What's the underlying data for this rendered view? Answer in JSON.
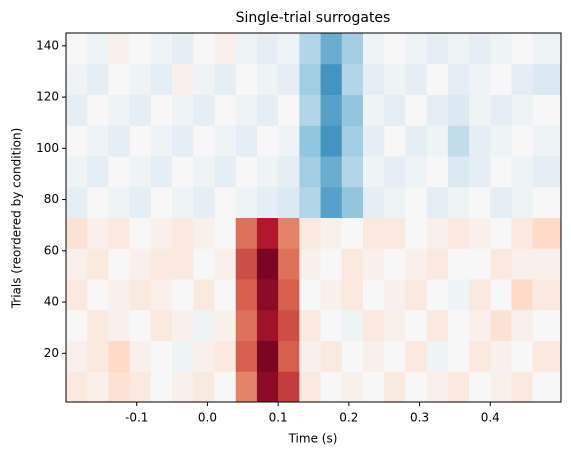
{
  "chart_data": {
    "type": "heatmap",
    "title": "Single-trial surrogates",
    "xlabel": "Time (s)",
    "ylabel": "Trials (reordered by condition)",
    "colormap": "RdBu_r",
    "clim": [
      -1,
      1
    ],
    "xlim": [
      -0.2,
      0.5
    ],
    "ylim": [
      1,
      145
    ],
    "xticks": [
      -0.1,
      {
        "value": 0,
        "label": "0.0"
      },
      0.1,
      0.2,
      0.3,
      0.4
    ],
    "yticks": [
      20,
      40,
      60,
      80,
      100,
      120,
      140
    ],
    "x_edges": [
      -0.2,
      -0.17,
      -0.14,
      -0.11,
      -0.08,
      -0.05,
      -0.02,
      0.01,
      0.04,
      0.07,
      0.1,
      0.13,
      0.16,
      0.19,
      0.22,
      0.25,
      0.28,
      0.31,
      0.34,
      0.37,
      0.4,
      0.43,
      0.46,
      0.5
    ],
    "y_edges": [
      1,
      13,
      25,
      37,
      49,
      61,
      73,
      85,
      97,
      109,
      121,
      133,
      145
    ],
    "z": [
      [
        0.1,
        0.05,
        0.15,
        0.1,
        0,
        0.05,
        0.1,
        0,
        0.5,
        0.9,
        0.7,
        0.1,
        0,
        0.05,
        0,
        0.1,
        0,
        0.05,
        0.1,
        0,
        0.05,
        0.1,
        0
      ],
      [
        0.05,
        0.1,
        0.2,
        0.05,
        0,
        -0.05,
        0.05,
        0.1,
        0.6,
        0.95,
        0.6,
        0.05,
        0.1,
        0,
        0.05,
        0,
        0.1,
        -0.05,
        0,
        0.1,
        0.05,
        0,
        0.1
      ],
      [
        0,
        0.1,
        0.05,
        0,
        0.1,
        0.05,
        -0.05,
        0.05,
        0.55,
        0.85,
        0.65,
        0.1,
        0,
        -0.05,
        0.1,
        0.05,
        0,
        0.1,
        0,
        0.05,
        0.15,
        0.05,
        0
      ],
      [
        0.1,
        0,
        0.05,
        0.1,
        0.05,
        0,
        0.1,
        0,
        0.6,
        0.9,
        0.6,
        0,
        0.05,
        0.1,
        0,
        0.05,
        0.1,
        0,
        -0.05,
        0.1,
        0,
        0.2,
        0.1
      ],
      [
        0.05,
        0.1,
        0,
        0.05,
        0.1,
        0.1,
        0,
        0.05,
        0.65,
        0.95,
        0.55,
        0.05,
        0,
        0.1,
        0.05,
        0,
        0.05,
        0.1,
        0,
        0,
        0.1,
        0.05,
        0.05
      ],
      [
        0.15,
        0.05,
        0.1,
        0,
        0.05,
        0.1,
        0.05,
        0,
        0.55,
        0.8,
        0.5,
        0.1,
        0.05,
        0,
        0.1,
        0.1,
        0,
        0.05,
        0.1,
        0.05,
        0,
        0.1,
        0.2
      ],
      [
        -0.1,
        0,
        -0.05,
        -0.1,
        0,
        -0.05,
        -0.1,
        0,
        -0.05,
        -0.1,
        -0.15,
        -0.3,
        -0.55,
        -0.4,
        -0.1,
        -0.05,
        0,
        -0.1,
        -0.05,
        0,
        -0.1,
        -0.05,
        0
      ],
      [
        -0.05,
        -0.1,
        0,
        -0.05,
        -0.1,
        0,
        -0.05,
        -0.1,
        0,
        -0.05,
        -0.1,
        -0.35,
        -0.5,
        -0.3,
        -0.05,
        -0.1,
        -0.05,
        0,
        -0.15,
        -0.1,
        0,
        -0.05,
        -0.1
      ],
      [
        0,
        -0.05,
        -0.1,
        0,
        -0.05,
        -0.1,
        0,
        -0.05,
        -0.1,
        0,
        -0.05,
        -0.4,
        -0.6,
        -0.35,
        -0.1,
        0,
        -0.1,
        -0.05,
        -0.25,
        -0.1,
        -0.05,
        0,
        -0.05
      ],
      [
        -0.1,
        0,
        -0.05,
        -0.1,
        0,
        -0.05,
        -0.1,
        0,
        -0.05,
        -0.1,
        0,
        -0.3,
        -0.55,
        -0.4,
        -0.05,
        -0.1,
        0,
        -0.1,
        -0.15,
        -0.05,
        -0.1,
        -0.05,
        0
      ],
      [
        -0.05,
        -0.1,
        0,
        -0.05,
        -0.1,
        0.05,
        -0.05,
        -0.1,
        0,
        -0.05,
        -0.1,
        -0.35,
        -0.6,
        -0.3,
        -0.1,
        -0.05,
        -0.1,
        0,
        -0.1,
        -0.05,
        0,
        -0.1,
        -0.15
      ],
      [
        0,
        -0.05,
        0.05,
        0,
        -0.05,
        -0.1,
        0,
        0.05,
        -0.05,
        -0.1,
        -0.05,
        -0.3,
        -0.5,
        -0.35,
        -0.05,
        0,
        -0.05,
        -0.1,
        -0.05,
        -0.1,
        -0.05,
        0,
        -0.05
      ]
    ]
  }
}
